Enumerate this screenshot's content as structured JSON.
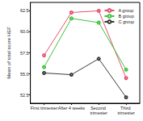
{
  "chart_data": {
    "type": "line",
    "y_label": "Mean of total score HEF",
    "categories": [
      "First trimester",
      "After 4 weeks",
      "Second trimester",
      "Third trimester"
    ],
    "series": [
      {
        "name": "A group",
        "color": "#e8506e",
        "values": [
          57.2,
          62.3,
          62.5,
          54.5
        ]
      },
      {
        "name": "B group",
        "color": "#3cc43c",
        "values": [
          55.8,
          61.6,
          61.1,
          55.5
        ]
      },
      {
        "name": "C group",
        "color": "#3a3a3a",
        "values": [
          55.1,
          54.9,
          56.8,
          52.2
        ]
      }
    ],
    "ylim": [
      51.5,
      63.5
    ],
    "yticks": [
      {
        "value": 52.5,
        "label": "52.5"
      },
      {
        "value": 55,
        "label": "55.0"
      },
      {
        "value": 57.5,
        "label": "57.5"
      },
      {
        "value": 60,
        "label": "60.0"
      },
      {
        "value": 62.5,
        "label": "62.5"
      }
    ],
    "grid": false,
    "legend": "top-right",
    "marker": "circle"
  }
}
